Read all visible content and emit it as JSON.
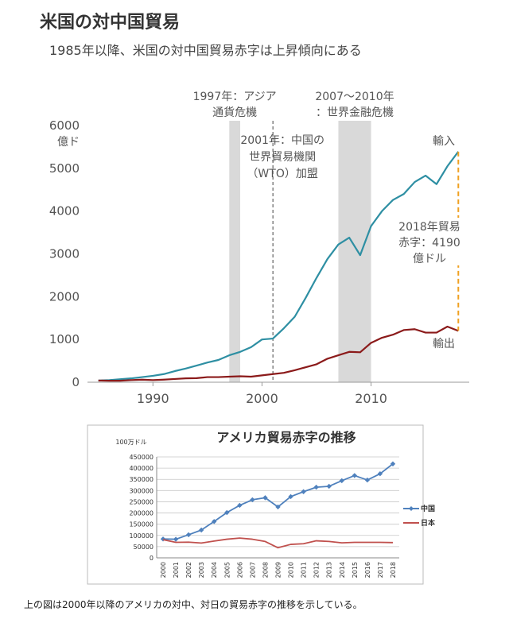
{
  "top_chart": {
    "title": "米国の対中国貿易",
    "subtitle": "1985年以降、米国の対中国貿易赤字は上昇傾向にある",
    "chart_data": {
      "type": "line",
      "unit_label": "億ド",
      "ylim": [
        0,
        6000
      ],
      "xlim": [
        1984,
        2019
      ],
      "y_ticks": [
        0,
        1000,
        2000,
        3000,
        4000,
        5000,
        6000
      ],
      "x_ticks": [
        1990,
        2000,
        2010
      ],
      "series": [
        {
          "name": "輸入",
          "color": "#2e8fa3",
          "x": [
            1985,
            1986,
            1987,
            1988,
            1989,
            1990,
            1991,
            1992,
            1993,
            1994,
            1995,
            1996,
            1997,
            1998,
            1999,
            2000,
            2001,
            2002,
            2003,
            2004,
            2005,
            2006,
            2007,
            2008,
            2009,
            2010,
            2011,
            2012,
            2013,
            2014,
            2015,
            2016,
            2017,
            2018
          ],
          "y": [
            40,
            50,
            70,
            90,
            120,
            150,
            190,
            260,
            320,
            390,
            460,
            520,
            630,
            710,
            820,
            1000,
            1020,
            1260,
            1530,
            1970,
            2440,
            2880,
            3220,
            3380,
            2970,
            3650,
            4000,
            4260,
            4400,
            4680,
            4830,
            4630,
            5050,
            5390
          ]
        },
        {
          "name": "輸出",
          "color": "#8b1a1a",
          "x": [
            1985,
            1986,
            1987,
            1988,
            1989,
            1990,
            1991,
            1992,
            1993,
            1994,
            1995,
            1996,
            1997,
            1998,
            1999,
            2000,
            2001,
            2002,
            2003,
            2004,
            2005,
            2006,
            2007,
            2008,
            2009,
            2010,
            2011,
            2012,
            2013,
            2014,
            2015,
            2016,
            2017,
            2018
          ],
          "y": [
            40,
            35,
            35,
            50,
            60,
            50,
            60,
            75,
            90,
            95,
            120,
            120,
            130,
            140,
            130,
            160,
            190,
            220,
            280,
            350,
            420,
            550,
            630,
            710,
            700,
            920,
            1040,
            1110,
            1220,
            1240,
            1160,
            1160,
            1300,
            1200
          ]
        }
      ],
      "shaded_periods": [
        {
          "from": 1997,
          "to": 1998,
          "label_line1": "1997年：アジア",
          "label_line2": "通貨危機"
        },
        {
          "from": 2007,
          "to": 2010,
          "label_line1": "2007〜2010年",
          "label_line2": "：世界金融危機"
        }
      ],
      "event_line": {
        "x": 2001,
        "line1": "2001年：中国の",
        "line2": "世界貿易機関",
        "line3": "（WTO）加盟"
      },
      "deficit_annotation": {
        "x": 2018,
        "from": 1200,
        "to": 5390,
        "line1": "2018年貿易",
        "line2": "赤字：4190",
        "line3": "億ドル"
      }
    }
  },
  "bottom_chart": {
    "chart_data": {
      "type": "line",
      "title": "アメリカ貿易赤字の推移",
      "unit_label": "100万ドル",
      "ylim": [
        0,
        450000
      ],
      "y_ticks": [
        0,
        50000,
        100000,
        150000,
        200000,
        250000,
        300000,
        350000,
        400000,
        450000
      ],
      "categories": [
        "2000",
        "2001",
        "2002",
        "2003",
        "2004",
        "2005",
        "2006",
        "2007",
        "2008",
        "2009",
        "2010",
        "2011",
        "2012",
        "2013",
        "2014",
        "2015",
        "2016",
        "2017",
        "2018"
      ],
      "grid": true,
      "legend_position": "right",
      "series": [
        {
          "name": "中国",
          "color": "#4f81bd",
          "marker": "diamond",
          "values": [
            84000,
            83000,
            103000,
            124000,
            162000,
            202000,
            234000,
            259000,
            268000,
            227000,
            273000,
            295000,
            315000,
            319000,
            344000,
            367000,
            347000,
            375000,
            419000
          ]
        },
        {
          "name": "日本",
          "color": "#c0504d",
          "marker": "none",
          "values": [
            81000,
            69000,
            70000,
            66000,
            75000,
            83000,
            88000,
            83000,
            73000,
            45000,
            60000,
            63000,
            76000,
            73000,
            67000,
            69000,
            69000,
            69000,
            68000
          ]
        }
      ]
    }
  },
  "caption": "上の図は2000年以降のアメリカの対中、対日の貿易赤字の推移を示している。"
}
